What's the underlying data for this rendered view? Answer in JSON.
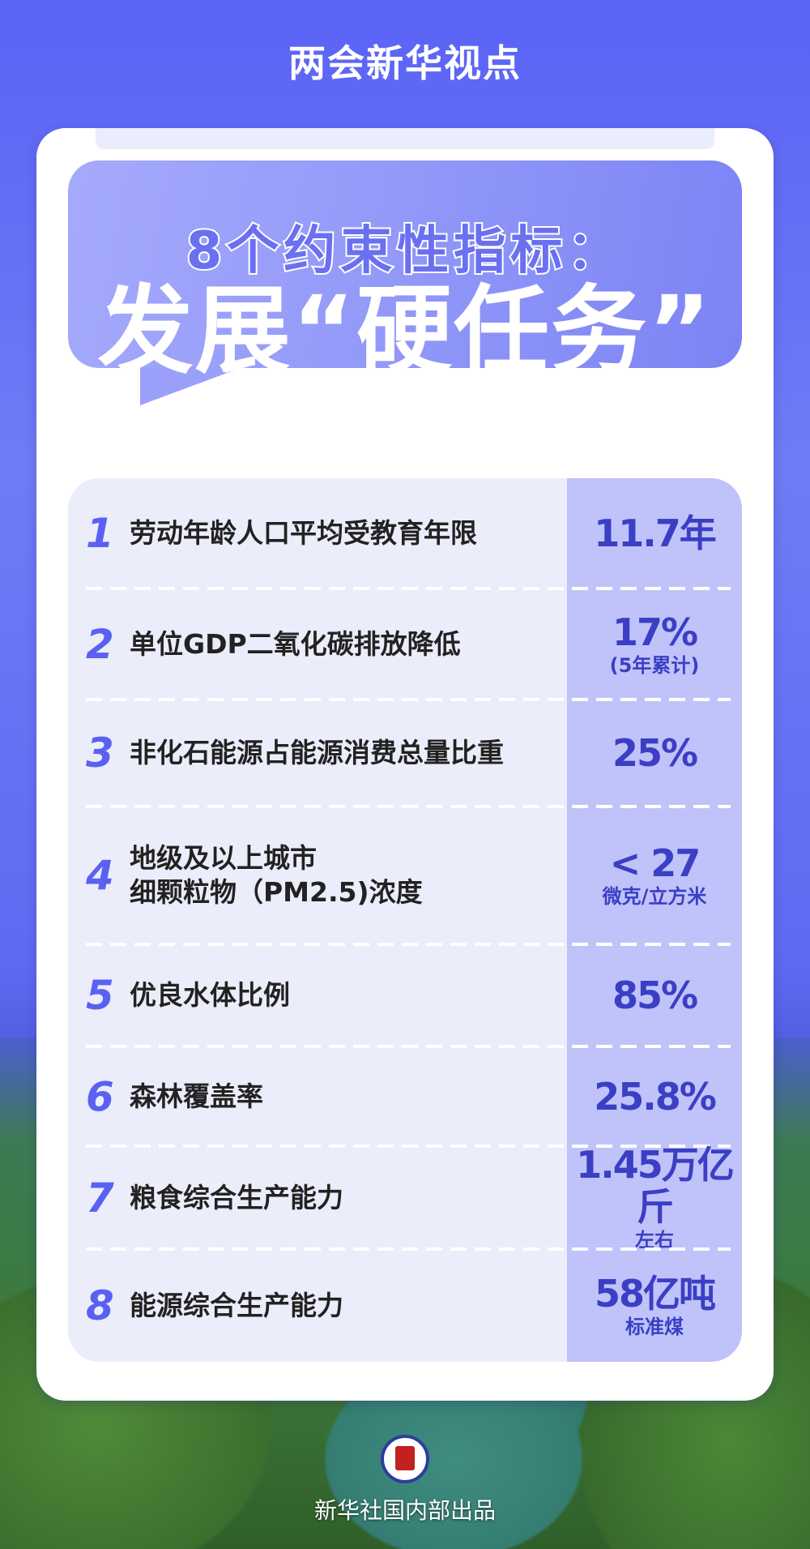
{
  "header": {
    "title": "两会新华视点"
  },
  "banner": {
    "line1": "8个约束性指标：",
    "line2": "发展“硬任务”"
  },
  "colors": {
    "primary": "#5a61f2",
    "value_text": "#3a3fc4",
    "value_column": "#c0c3fa",
    "table_bg": "#ecedfb"
  },
  "indicators": [
    {
      "num": "1",
      "label": "劳动年龄人口平均受教育年限",
      "value": "11.7年",
      "note": ""
    },
    {
      "num": "2",
      "label": "单位GDP二氧化碳排放降低",
      "value": "17%",
      "note": "(5年累计)"
    },
    {
      "num": "3",
      "label": "非化石能源占能源消费总量比重",
      "value": "25%",
      "note": ""
    },
    {
      "num": "4",
      "label": "地级及以上城市\n细颗粒物（PM2.5)浓度",
      "value": "< 27",
      "note": "微克/立方米"
    },
    {
      "num": "5",
      "label": "优良水体比例",
      "value": "85%",
      "note": ""
    },
    {
      "num": "6",
      "label": "森林覆盖率",
      "value": "25.8%",
      "note": ""
    },
    {
      "num": "7",
      "label": "粮食综合生产能力",
      "value": "1.45万亿斤",
      "note": "左右"
    },
    {
      "num": "8",
      "label": "能源综合生产能力",
      "value": "58亿吨",
      "note": "标准煤"
    }
  ],
  "footer": {
    "logo": "新华社",
    "credit": "新华社国内部出品"
  }
}
